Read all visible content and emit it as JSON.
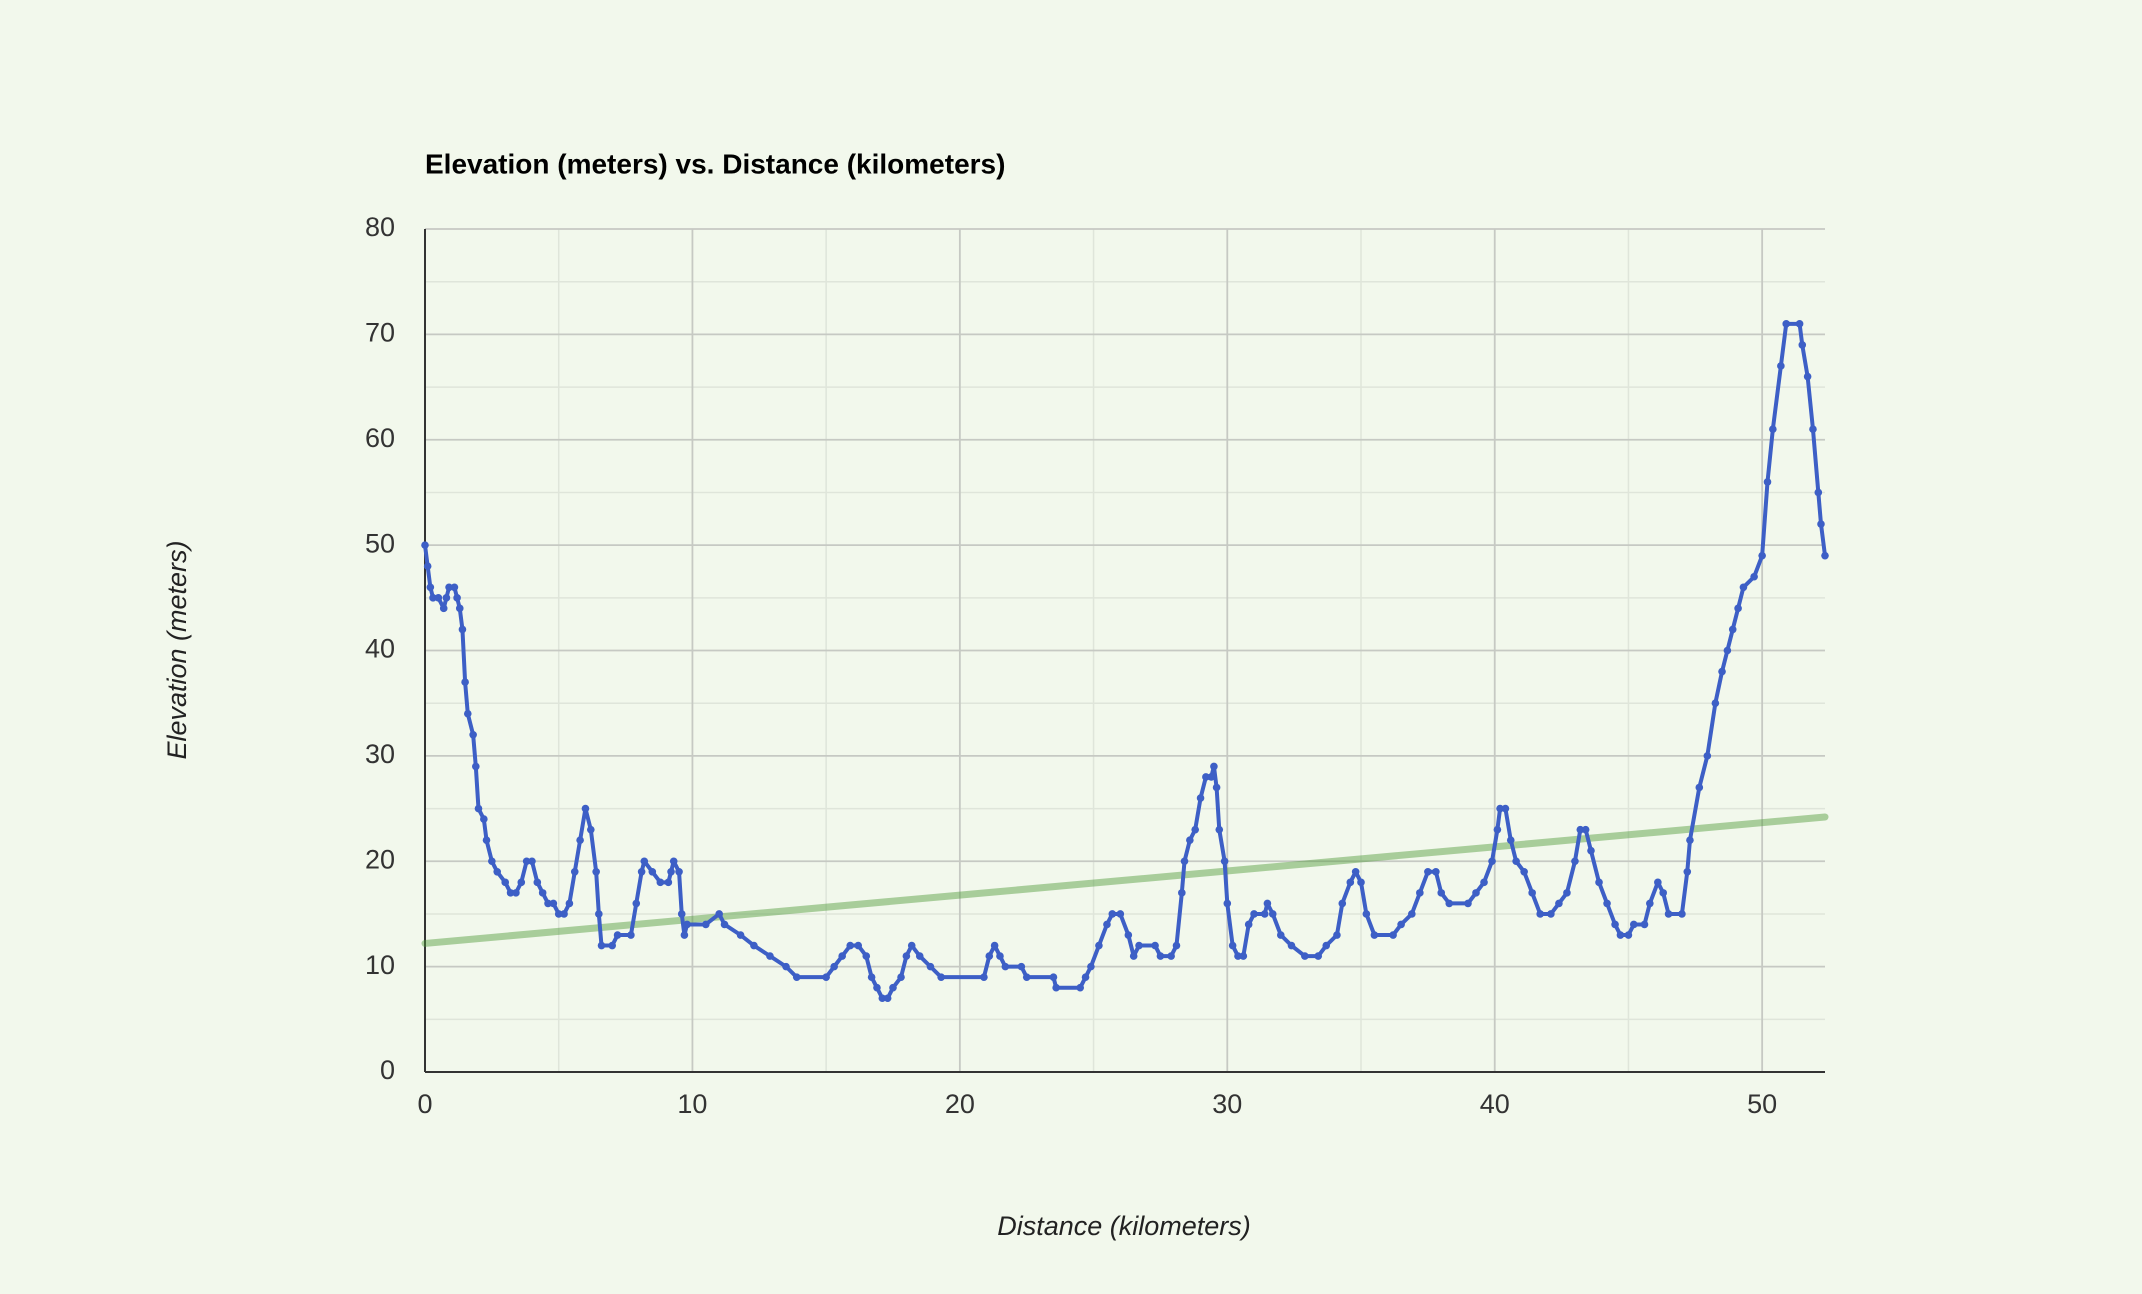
{
  "chart_data": {
    "type": "line",
    "title": "Elevation (meters) vs. Distance (kilometers)",
    "x_label": "Distance (kilometers)",
    "y_label": "Elevation (meters)",
    "x": [
      0,
      0.1,
      0.2,
      0.3,
      0.5,
      0.7,
      0.8,
      0.9,
      1.1,
      1.2,
      1.3,
      1.4,
      1.5,
      1.6,
      1.8,
      1.9,
      2.0,
      2.2,
      2.3,
      2.5,
      2.7,
      3.0,
      3.2,
      3.4,
      3.6,
      3.8,
      4.0,
      4.2,
      4.4,
      4.6,
      4.8,
      5.0,
      5.2,
      5.4,
      5.6,
      5.8,
      6.0,
      6.2,
      6.4,
      6.5,
      6.6,
      7.0,
      7.2,
      7.7,
      7.9,
      8.1,
      8.2,
      8.5,
      8.8,
      9.1,
      9.2,
      9.3,
      9.5,
      9.6,
      9.7,
      9.8,
      10.5,
      11.0,
      11.2,
      11.8,
      12.3,
      12.9,
      13.5,
      13.9,
      15.0,
      15.3,
      15.6,
      15.9,
      16.2,
      16.5,
      16.7,
      16.9,
      17.1,
      17.3,
      17.5,
      17.8,
      18.0,
      18.2,
      18.5,
      18.9,
      19.3,
      20.9,
      21.1,
      21.3,
      21.5,
      21.7,
      22.3,
      22.5,
      23.5,
      23.6,
      24.5,
      24.7,
      24.9,
      25.2,
      25.5,
      25.7,
      26.0,
      26.3,
      26.5,
      26.7,
      27.3,
      27.5,
      27.9,
      28.1,
      28.3,
      28.4,
      28.6,
      28.8,
      29.0,
      29.2,
      29.4,
      29.5,
      29.6,
      29.7,
      29.9,
      30.0,
      30.2,
      30.4,
      30.6,
      30.8,
      31.0,
      31.4,
      31.5,
      31.7,
      32.0,
      32.4,
      32.9,
      33.4,
      33.7,
      34.1,
      34.3,
      34.6,
      34.8,
      35.0,
      35.2,
      35.5,
      36.2,
      36.5,
      36.9,
      37.2,
      37.5,
      37.8,
      38.0,
      38.3,
      39.0,
      39.3,
      39.6,
      39.9,
      40.1,
      40.2,
      40.4,
      40.6,
      40.8,
      41.1,
      41.4,
      41.7,
      42.1,
      42.4,
      42.7,
      43.0,
      43.2,
      43.4,
      43.6,
      43.9,
      44.2,
      44.5,
      44.7,
      45.0,
      45.2,
      45.6,
      45.8,
      46.1,
      46.3,
      46.5,
      47.0,
      47.2,
      47.3,
      47.65,
      47.95,
      48.25,
      48.5,
      48.7,
      48.9,
      49.1,
      49.3,
      49.7,
      50.0,
      50.2,
      50.4,
      50.7,
      50.9,
      51.4,
      51.5,
      51.7,
      51.9,
      52.1,
      52.2,
      52.35
    ],
    "series": [
      {
        "color": "#3d5fc6",
        "values": [
          50,
          48,
          46,
          45,
          45,
          44,
          45,
          46,
          46,
          45,
          44,
          42,
          37,
          34,
          32,
          29,
          25,
          24,
          22,
          20,
          19,
          18,
          17,
          17,
          18,
          20,
          20,
          18,
          17,
          16,
          16,
          15,
          15,
          16,
          19,
          22,
          25,
          23,
          19,
          15,
          12,
          12,
          13,
          13,
          16,
          19,
          20,
          19,
          18,
          18,
          19,
          20,
          19,
          15,
          13,
          14,
          14,
          15,
          14,
          13,
          12,
          11,
          10,
          9,
          9,
          10,
          11,
          12,
          12,
          11,
          9,
          8,
          7,
          7,
          8,
          9,
          11,
          12,
          11,
          10,
          9,
          9,
          11,
          12,
          11,
          10,
          10,
          9,
          9,
          8,
          8,
          9,
          10,
          12,
          14,
          15,
          15,
          13,
          11,
          12,
          12,
          11,
          11,
          12,
          17,
          20,
          22,
          23,
          26,
          28,
          28,
          29,
          27,
          23,
          20,
          16,
          12,
          11,
          11,
          14,
          15,
          15,
          16,
          15,
          13,
          12,
          11,
          11,
          12,
          13,
          16,
          18,
          19,
          18,
          15,
          13,
          13,
          14,
          15,
          17,
          19,
          19,
          17,
          16,
          16,
          17,
          18,
          20,
          23,
          25,
          25,
          22,
          20,
          19,
          17,
          15,
          15,
          16,
          17,
          20,
          23,
          23,
          21,
          18,
          16,
          14,
          13,
          13,
          14,
          14,
          16,
          18,
          17,
          15,
          15,
          19,
          22,
          27,
          30,
          35,
          38,
          40,
          42,
          44,
          46,
          47,
          49,
          56,
          61,
          67,
          71,
          71,
          69,
          66,
          61,
          55,
          52,
          49
        ]
      }
    ],
    "trendline": {
      "color": "#4e9a38",
      "x": [
        0,
        52.35
      ],
      "values": [
        12.2,
        24.2
      ]
    },
    "xlim": [
      0,
      52.35
    ],
    "xticks": [
      0,
      10,
      20,
      30,
      40,
      50
    ],
    "xminorticks": [
      5,
      15,
      25,
      35,
      45
    ],
    "ylim": [
      0,
      80
    ],
    "yticks": [
      0,
      10,
      20,
      30,
      40,
      50,
      60,
      70,
      80
    ],
    "yminorticks": [
      5,
      15,
      25,
      35,
      45,
      55,
      65,
      75
    ],
    "grid": true
  }
}
